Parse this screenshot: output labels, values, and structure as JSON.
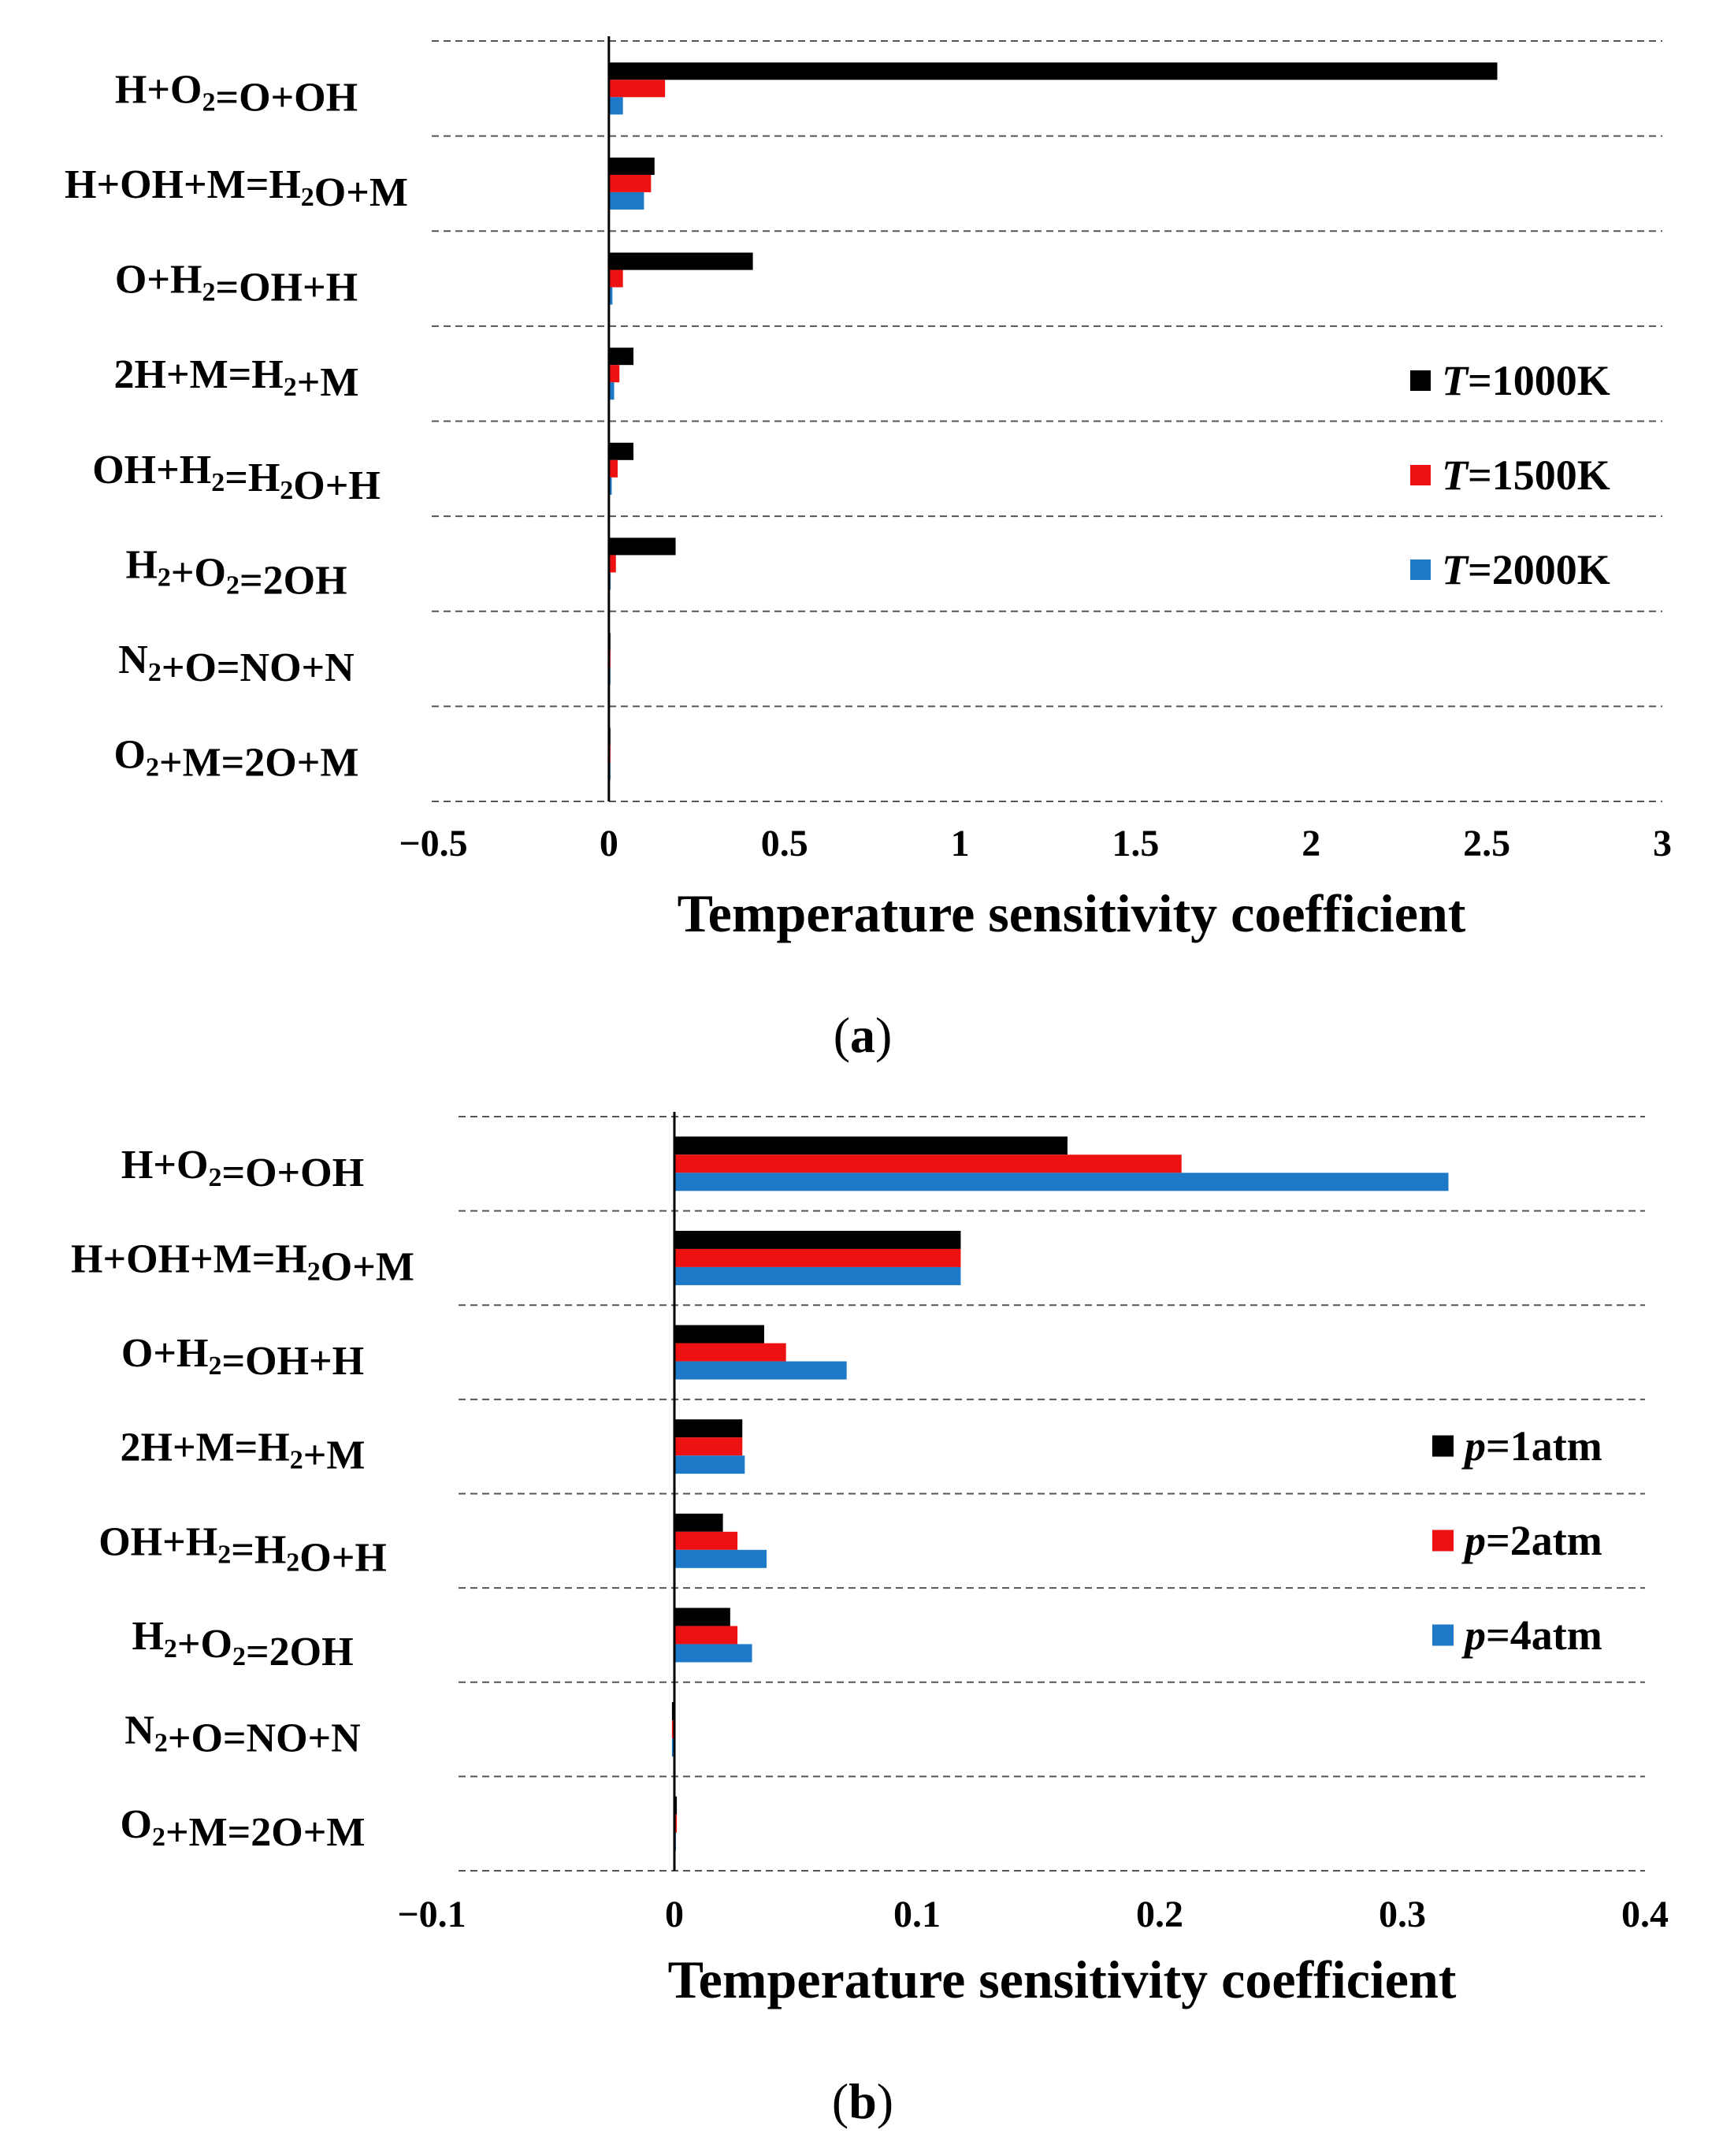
{
  "chart_data": [
    {
      "type": "bar",
      "orientation": "horizontal",
      "panel_label": "(a)",
      "title": "",
      "xlabel": "Temperature sensitivity coefficient",
      "ylabel": "",
      "xlim": [
        -0.5,
        3
      ],
      "xticks": [
        -0.5,
        0,
        0.5,
        1,
        1.5,
        2,
        2.5,
        3
      ],
      "xtick_labels": [
        "−0.5",
        "0",
        "0.5",
        "1",
        "1.5",
        "2",
        "2.5",
        "3"
      ],
      "grid": "dashed horizontal separators between categories",
      "legend_position": "right-middle",
      "categories": [
        [
          "H+O",
          {
            "sub": "2"
          },
          "=O+OH"
        ],
        [
          "H+OH+M=H",
          {
            "sub": "2"
          },
          "O+M"
        ],
        [
          "O+H",
          {
            "sub": "2"
          },
          "=OH+H"
        ],
        [
          "2H+M=H",
          {
            "sub": "2"
          },
          "+M"
        ],
        [
          "OH+H",
          {
            "sub": "2"
          },
          "=H",
          {
            "sub": "2"
          },
          "O+H"
        ],
        [
          "H",
          {
            "sub": "2"
          },
          "+O",
          {
            "sub": "2"
          },
          "=2OH"
        ],
        [
          "N",
          {
            "sub": "2"
          },
          "+O=NO+N"
        ],
        [
          "O",
          {
            "sub": "2"
          },
          "+M=2O+M"
        ]
      ],
      "series": [
        {
          "name": "T=1000K",
          "legend_italic": "T",
          "legend_rest": "=1000K",
          "color": "#000000",
          "values": [
            2.53,
            0.13,
            0.41,
            0.07,
            0.07,
            0.19,
            0.0,
            0.0
          ]
        },
        {
          "name": "T=1500K",
          "legend_italic": "T",
          "legend_rest": "=1500K",
          "color": "#ee1111",
          "values": [
            0.16,
            0.12,
            0.04,
            0.03,
            0.025,
            0.02,
            0.0,
            0.0
          ]
        },
        {
          "name": "T=2000K",
          "legend_italic": "T",
          "legend_rest": "=2000K",
          "color": "#1e7ac8",
          "values": [
            0.04,
            0.1,
            0.01,
            0.015,
            0.008,
            0.005,
            0.0,
            0.0
          ]
        }
      ]
    },
    {
      "type": "bar",
      "orientation": "horizontal",
      "panel_label": "(b)",
      "title": "",
      "xlabel": "Temperature sensitivity coefficient",
      "ylabel": "",
      "xlim": [
        -0.1,
        0.4
      ],
      "xticks": [
        -0.1,
        0,
        0.1,
        0.2,
        0.3,
        0.4
      ],
      "xtick_labels": [
        "−0.1",
        "0",
        "0.1",
        "0.2",
        "0.3",
        "0.4"
      ],
      "grid": "dashed horizontal separators between categories",
      "legend_position": "right-middle",
      "categories": [
        [
          "H+O",
          {
            "sub": "2"
          },
          "=O+OH"
        ],
        [
          "H+OH+M=H",
          {
            "sub": "2"
          },
          "O+M"
        ],
        [
          "O+H",
          {
            "sub": "2"
          },
          "=OH+H"
        ],
        [
          "2H+M=H",
          {
            "sub": "2"
          },
          "+M"
        ],
        [
          "OH+H",
          {
            "sub": "2"
          },
          "=H",
          {
            "sub": "2"
          },
          "O+H"
        ],
        [
          "H",
          {
            "sub": "2"
          },
          "+O",
          {
            "sub": "2"
          },
          "=2OH"
        ],
        [
          "N",
          {
            "sub": "2"
          },
          "+O=NO+N"
        ],
        [
          "O",
          {
            "sub": "2"
          },
          "+M=2O+M"
        ]
      ],
      "series": [
        {
          "name": "p=1atm",
          "legend_italic": "p",
          "legend_rest": "=1atm",
          "color": "#000000",
          "values": [
            0.162,
            0.118,
            0.037,
            0.028,
            0.02,
            0.023,
            -0.001,
            0.001
          ]
        },
        {
          "name": "p=2atm",
          "legend_italic": "p",
          "legend_rest": "=2atm",
          "color": "#ee1111",
          "values": [
            0.209,
            0.118,
            0.046,
            0.028,
            0.026,
            0.026,
            -0.001,
            0.001
          ]
        },
        {
          "name": "p=4atm",
          "legend_italic": "p",
          "legend_rest": "=4atm",
          "color": "#1e7ac8",
          "values": [
            0.319,
            0.118,
            0.071,
            0.029,
            0.038,
            0.032,
            -0.001,
            0.0
          ]
        }
      ]
    }
  ]
}
